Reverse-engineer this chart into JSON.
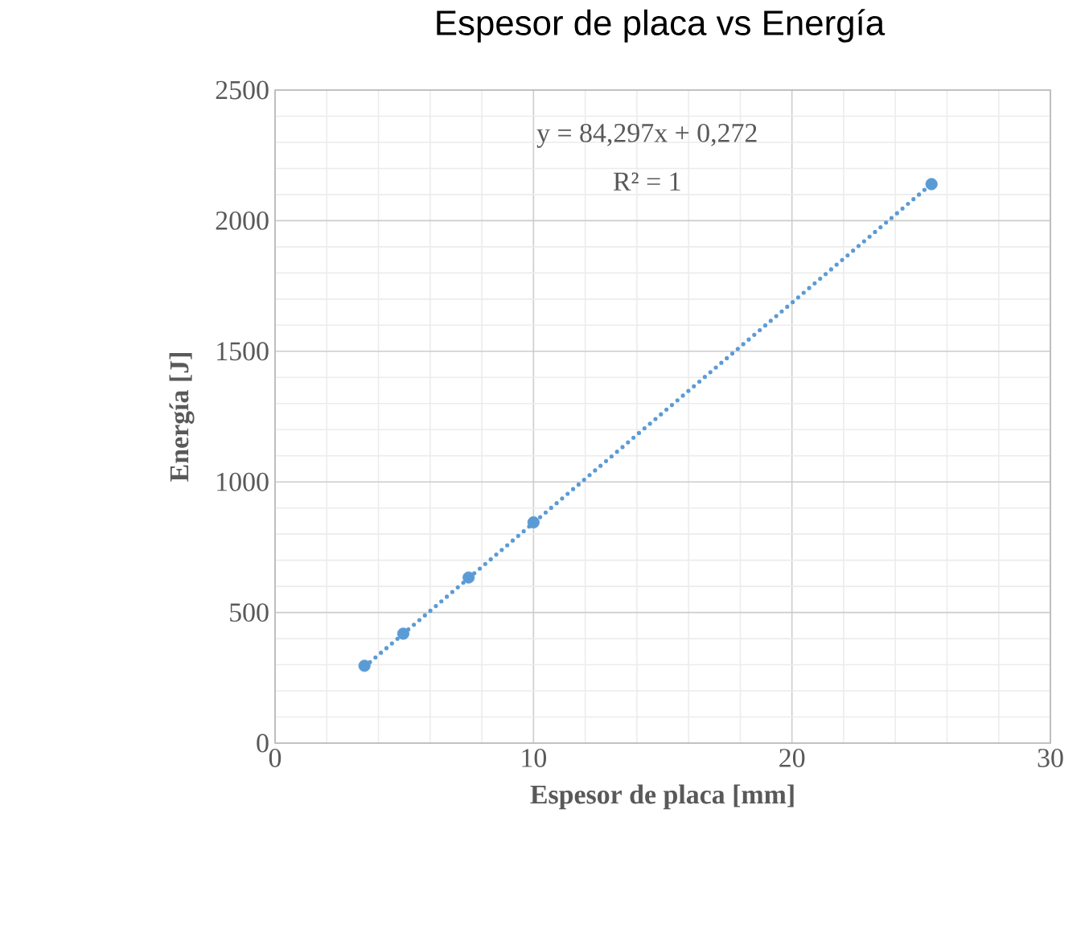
{
  "chart_data": {
    "type": "scatter",
    "title": "Espesor de placa vs Energía",
    "xlabel": "Espesor de placa [mm]",
    "ylabel": "Energía [J]",
    "xlim": [
      0,
      30
    ],
    "ylim": [
      0,
      2500
    ],
    "xticks": [
      0,
      10,
      20,
      30
    ],
    "yticks": [
      0,
      500,
      1000,
      1500,
      2000,
      2500
    ],
    "grid": true,
    "marker": "circle",
    "annotations": [
      "y = 84,297x + 0,272",
      "R² = 1"
    ],
    "series": [
      {
        "color": "#5b9bd5",
        "x": [
          3.46,
          4.96,
          7.49,
          10.0,
          25.4
        ],
        "values": [
          296,
          419,
          634,
          845,
          2140
        ]
      },
      {
        "type": "line",
        "line_style": "dotted",
        "marker": "none",
        "color": "#5b9bd5",
        "x": [
          3.46,
          25.4
        ],
        "values": [
          292,
          2141
        ]
      }
    ]
  }
}
